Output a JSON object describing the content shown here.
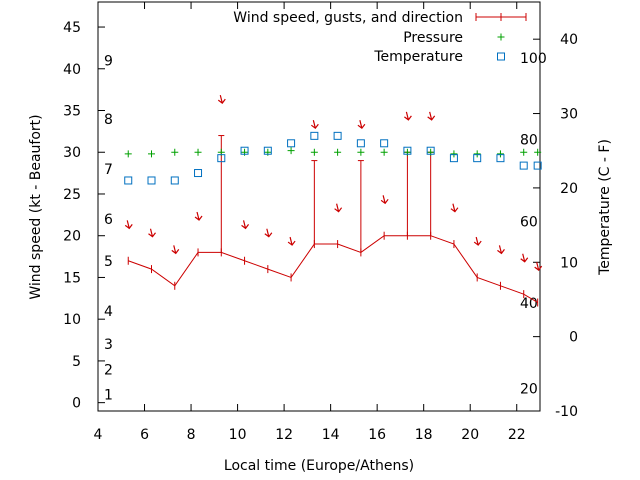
{
  "chart_data": {
    "type": "line",
    "xlabel": "Local time (Europe/Athens)",
    "ylabel": "Wind speed (kt - Beaufort)",
    "y2label": "Temperature (C - F)",
    "xlim": [
      4,
      23
    ],
    "ylim": [
      -1,
      48
    ],
    "y2lim": [
      -10,
      45
    ],
    "x_ticks": [
      4,
      6,
      8,
      10,
      12,
      14,
      16,
      18,
      20,
      22
    ],
    "y_ticks": [
      0,
      5,
      10,
      15,
      20,
      25,
      30,
      35,
      40,
      45
    ],
    "y2_ticks": [
      -10,
      0,
      10,
      20,
      30,
      40
    ],
    "beaufort_labels": [
      {
        "label": "1",
        "y": 1
      },
      {
        "label": "2",
        "y": 4
      },
      {
        "label": "3",
        "y": 7
      },
      {
        "label": "4",
        "y": 11
      },
      {
        "label": "5",
        "y": 17
      },
      {
        "label": "6",
        "y": 22
      },
      {
        "label": "7",
        "y": 28
      },
      {
        "label": "8",
        "y": 34
      },
      {
        "label": "9",
        "y": 41
      }
    ],
    "fahrenheit_labels": [
      {
        "label": "20",
        "y2": -7
      },
      {
        "label": "40",
        "y2": 4.5
      },
      {
        "label": "60",
        "y2": 15.5
      },
      {
        "label": "80",
        "y2": 26.5
      },
      {
        "label": "100",
        "y2": 37.5
      }
    ],
    "legend": [
      "Wind speed, gusts, and direction",
      "Pressure",
      "Temperature"
    ],
    "legend_position": "top-right",
    "colors": {
      "wind": "#cc0000",
      "pressure": "#00a000",
      "temperature": "#0070c0"
    },
    "series": [
      {
        "name": "Wind speed, gusts, and direction",
        "x": [
          5.3,
          6.3,
          7.3,
          8.3,
          9.3,
          10.3,
          11.3,
          12.3,
          13.3,
          14.3,
          15.3,
          16.3,
          17.3,
          18.3,
          19.3,
          20.3,
          21.3,
          22.3,
          22.9
        ],
        "values": [
          17,
          16,
          14,
          18,
          18,
          17,
          16,
          15,
          19,
          19,
          18,
          20,
          20,
          20,
          19,
          15,
          14,
          13,
          12
        ],
        "gusts": [
          null,
          null,
          null,
          null,
          32,
          null,
          null,
          null,
          29,
          null,
          29,
          null,
          30,
          30,
          null,
          null,
          null,
          null,
          null
        ],
        "arrow_y": [
          21,
          20,
          18,
          22,
          36,
          21,
          20,
          19,
          33,
          23,
          33,
          24,
          34,
          34,
          23,
          19,
          18,
          17,
          16
        ]
      },
      {
        "name": "Pressure",
        "x": [
          5.3,
          6.3,
          7.3,
          8.3,
          9.3,
          10.3,
          11.3,
          12.3,
          13.3,
          14.3,
          15.3,
          16.3,
          17.3,
          18.3,
          19.3,
          20.3,
          21.3,
          22.3,
          22.9
        ],
        "values": [
          29.8,
          29.8,
          30.0,
          30.0,
          30.0,
          30.0,
          30.0,
          30.2,
          30.0,
          30.0,
          30.0,
          30.0,
          30.0,
          30.0,
          29.8,
          29.8,
          29.8,
          30.0,
          30.0
        ]
      },
      {
        "name": "Temperature",
        "x": [
          5.3,
          6.3,
          7.3,
          8.3,
          9.3,
          10.3,
          11.3,
          12.3,
          13.3,
          14.3,
          15.3,
          16.3,
          17.3,
          18.3,
          19.3,
          20.3,
          21.3,
          22.3,
          22.9
        ],
        "values": [
          21,
          21,
          21,
          22,
          24,
          25,
          25,
          26,
          27,
          27,
          26,
          26,
          25,
          25,
          24,
          24,
          24,
          23,
          23
        ]
      }
    ]
  }
}
